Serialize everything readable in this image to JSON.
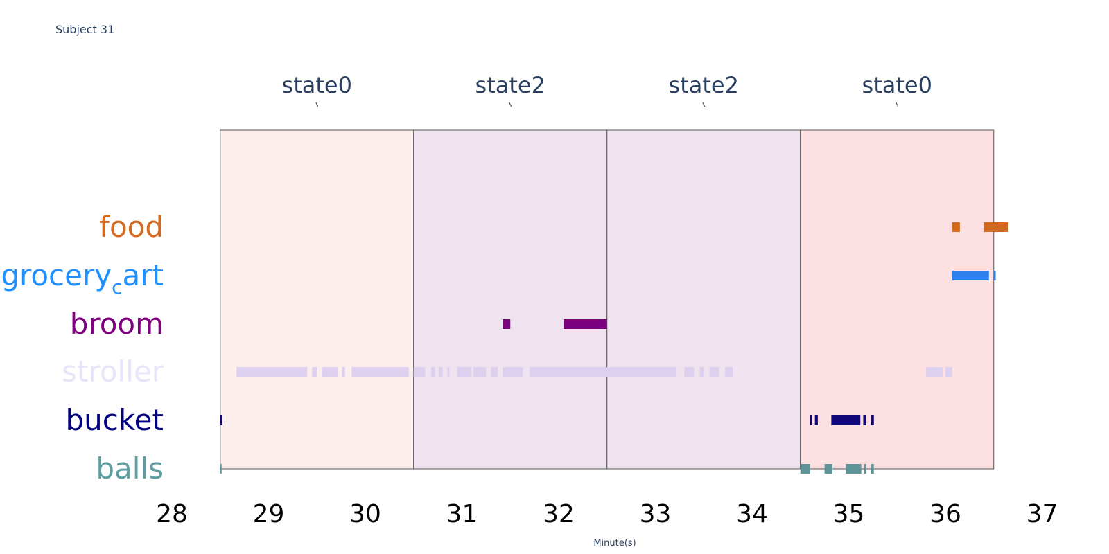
{
  "title": "Subject 31",
  "chart_data": {
    "type": "timeline",
    "xlabel": "Minute(s)",
    "xlim": [
      28,
      37
    ],
    "x_ticks": [
      "28",
      "29",
      "30",
      "31",
      "32",
      "33",
      "34",
      "35",
      "36",
      "37"
    ],
    "state_blocks": [
      {
        "label": "state0",
        "start": 28.5,
        "end": 30.5,
        "color": "#fdeeee"
      },
      {
        "label": "state2",
        "start": 30.5,
        "end": 32.5,
        "color": "#f0e3f0"
      },
      {
        "label": "state2",
        "start": 32.5,
        "end": 34.5,
        "color": "#f0e3f0"
      },
      {
        "label": "state0",
        "start": 34.5,
        "end": 36.5,
        "color": "#fde0e2"
      }
    ],
    "tracks": [
      {
        "name": "food",
        "label_color": "#d2691e",
        "bar_color": "#d2691e",
        "segments": [
          [
            36.07,
            36.15
          ],
          [
            36.4,
            36.65
          ]
        ]
      },
      {
        "name": "grocery_cart",
        "label_color": "#1e90ff",
        "bar_color": "#2f80ed",
        "segments": [
          [
            36.07,
            36.45
          ],
          [
            36.5,
            36.52
          ]
        ]
      },
      {
        "name": "broom",
        "label_color": "#800080",
        "bar_color": "#7a0080",
        "segments": [
          [
            31.42,
            31.5
          ],
          [
            32.05,
            32.5
          ]
        ]
      },
      {
        "name": "stroller",
        "label_color": "#e6e6fa",
        "bar_color": "#dcd0ee",
        "segments": [
          [
            28.67,
            29.4
          ],
          [
            29.45,
            29.5
          ],
          [
            29.55,
            29.72
          ],
          [
            29.76,
            29.79
          ],
          [
            29.86,
            30.45
          ],
          [
            30.5,
            30.62
          ],
          [
            30.68,
            30.72
          ],
          [
            30.76,
            30.8
          ],
          [
            30.85,
            30.87
          ],
          [
            30.95,
            31.1
          ],
          [
            31.12,
            31.25
          ],
          [
            31.3,
            31.37
          ],
          [
            31.42,
            31.63
          ],
          [
            31.7,
            33.22
          ],
          [
            33.3,
            33.4
          ],
          [
            33.46,
            33.5
          ],
          [
            33.56,
            33.66
          ],
          [
            33.72,
            33.8
          ],
          [
            35.8,
            35.97
          ],
          [
            36.0,
            36.07
          ]
        ]
      },
      {
        "name": "bucket",
        "label_color": "#000080",
        "bar_color": "#120878",
        "segments": [
          [
            28.5,
            28.52
          ],
          [
            34.6,
            34.62
          ],
          [
            34.65,
            34.68
          ],
          [
            34.82,
            35.12
          ],
          [
            35.15,
            35.18
          ],
          [
            35.23,
            35.26
          ]
        ]
      },
      {
        "name": "balls",
        "label_color": "#5f9ea0",
        "bar_color": "#5f9498",
        "segments": [
          [
            28.5,
            28.51
          ],
          [
            34.5,
            34.6
          ],
          [
            34.75,
            34.83
          ],
          [
            34.97,
            35.13
          ],
          [
            35.16,
            35.18
          ],
          [
            35.23,
            35.26
          ]
        ]
      }
    ]
  }
}
